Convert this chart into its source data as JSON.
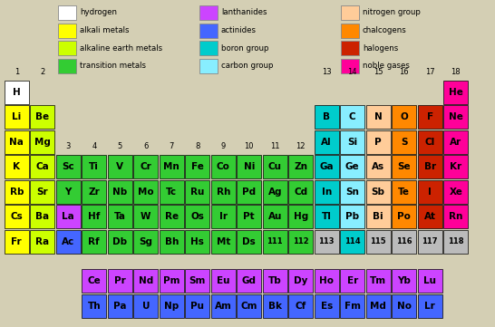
{
  "bg_color": "#d4cfb4",
  "element_colors": {
    "hydrogen": "#ffffff",
    "alkali": "#ffff00",
    "alkaline": "#ccff00",
    "transition": "#33cc33",
    "lanthanides": "#cc44ff",
    "actinides": "#4466ff",
    "boron_group": "#00cccc",
    "carbon_group": "#88eeff",
    "nitrogen_group": "#ffcc99",
    "chalcogens": "#ff8800",
    "halogens": "#cc2200",
    "noble": "#ff0099",
    "unknown": "#bbbbbb"
  },
  "legend_cols": [
    [
      {
        "label": "hydrogen",
        "color": "#ffffff"
      },
      {
        "label": "alkali metals",
        "color": "#ffff00"
      },
      {
        "label": "alkaline earth metals",
        "color": "#ccff00"
      },
      {
        "label": "transition metals",
        "color": "#33cc33"
      }
    ],
    [
      {
        "label": "lanthanides",
        "color": "#cc44ff"
      },
      {
        "label": "actinides",
        "color": "#4466ff"
      },
      {
        "label": "boron group",
        "color": "#00cccc"
      },
      {
        "label": "carbon group",
        "color": "#88eeff"
      }
    ],
    [
      {
        "label": "nitrogen group",
        "color": "#ffcc99"
      },
      {
        "label": "chalcogens",
        "color": "#ff8800"
      },
      {
        "label": "halogens",
        "color": "#cc2200"
      },
      {
        "label": "noble gases",
        "color": "#ff0099"
      }
    ]
  ],
  "elements": [
    {
      "symbol": "H",
      "row": 1,
      "col": 1,
      "type": "hydrogen"
    },
    {
      "symbol": "He",
      "row": 1,
      "col": 18,
      "type": "noble"
    },
    {
      "symbol": "Li",
      "row": 2,
      "col": 1,
      "type": "alkali"
    },
    {
      "symbol": "Be",
      "row": 2,
      "col": 2,
      "type": "alkaline"
    },
    {
      "symbol": "B",
      "row": 2,
      "col": 13,
      "type": "boron_group"
    },
    {
      "symbol": "C",
      "row": 2,
      "col": 14,
      "type": "carbon_group"
    },
    {
      "symbol": "N",
      "row": 2,
      "col": 15,
      "type": "nitrogen_group"
    },
    {
      "symbol": "O",
      "row": 2,
      "col": 16,
      "type": "chalcogens"
    },
    {
      "symbol": "F",
      "row": 2,
      "col": 17,
      "type": "halogens"
    },
    {
      "symbol": "Ne",
      "row": 2,
      "col": 18,
      "type": "noble"
    },
    {
      "symbol": "Na",
      "row": 3,
      "col": 1,
      "type": "alkali"
    },
    {
      "symbol": "Mg",
      "row": 3,
      "col": 2,
      "type": "alkaline"
    },
    {
      "symbol": "Al",
      "row": 3,
      "col": 13,
      "type": "boron_group"
    },
    {
      "symbol": "Si",
      "row": 3,
      "col": 14,
      "type": "carbon_group"
    },
    {
      "symbol": "P",
      "row": 3,
      "col": 15,
      "type": "nitrogen_group"
    },
    {
      "symbol": "S",
      "row": 3,
      "col": 16,
      "type": "chalcogens"
    },
    {
      "symbol": "Cl",
      "row": 3,
      "col": 17,
      "type": "halogens"
    },
    {
      "symbol": "Ar",
      "row": 3,
      "col": 18,
      "type": "noble"
    },
    {
      "symbol": "K",
      "row": 4,
      "col": 1,
      "type": "alkali"
    },
    {
      "symbol": "Ca",
      "row": 4,
      "col": 2,
      "type": "alkaline"
    },
    {
      "symbol": "Sc",
      "row": 4,
      "col": 3,
      "type": "transition"
    },
    {
      "symbol": "Ti",
      "row": 4,
      "col": 4,
      "type": "transition"
    },
    {
      "symbol": "V",
      "row": 4,
      "col": 5,
      "type": "transition"
    },
    {
      "symbol": "Cr",
      "row": 4,
      "col": 6,
      "type": "transition"
    },
    {
      "symbol": "Mn",
      "row": 4,
      "col": 7,
      "type": "transition"
    },
    {
      "symbol": "Fe",
      "row": 4,
      "col": 8,
      "type": "transition"
    },
    {
      "symbol": "Co",
      "row": 4,
      "col": 9,
      "type": "transition"
    },
    {
      "symbol": "Ni",
      "row": 4,
      "col": 10,
      "type": "transition"
    },
    {
      "symbol": "Cu",
      "row": 4,
      "col": 11,
      "type": "transition"
    },
    {
      "symbol": "Zn",
      "row": 4,
      "col": 12,
      "type": "transition"
    },
    {
      "symbol": "Ga",
      "row": 4,
      "col": 13,
      "type": "boron_group"
    },
    {
      "symbol": "Ge",
      "row": 4,
      "col": 14,
      "type": "carbon_group"
    },
    {
      "symbol": "As",
      "row": 4,
      "col": 15,
      "type": "nitrogen_group"
    },
    {
      "symbol": "Se",
      "row": 4,
      "col": 16,
      "type": "chalcogens"
    },
    {
      "symbol": "Br",
      "row": 4,
      "col": 17,
      "type": "halogens"
    },
    {
      "symbol": "Kr",
      "row": 4,
      "col": 18,
      "type": "noble"
    },
    {
      "symbol": "Rb",
      "row": 5,
      "col": 1,
      "type": "alkali"
    },
    {
      "symbol": "Sr",
      "row": 5,
      "col": 2,
      "type": "alkaline"
    },
    {
      "symbol": "Y",
      "row": 5,
      "col": 3,
      "type": "transition"
    },
    {
      "symbol": "Zr",
      "row": 5,
      "col": 4,
      "type": "transition"
    },
    {
      "symbol": "Nb",
      "row": 5,
      "col": 5,
      "type": "transition"
    },
    {
      "symbol": "Mo",
      "row": 5,
      "col": 6,
      "type": "transition"
    },
    {
      "symbol": "Tc",
      "row": 5,
      "col": 7,
      "type": "transition"
    },
    {
      "symbol": "Ru",
      "row": 5,
      "col": 8,
      "type": "transition"
    },
    {
      "symbol": "Rh",
      "row": 5,
      "col": 9,
      "type": "transition"
    },
    {
      "symbol": "Pd",
      "row": 5,
      "col": 10,
      "type": "transition"
    },
    {
      "symbol": "Ag",
      "row": 5,
      "col": 11,
      "type": "transition"
    },
    {
      "symbol": "Cd",
      "row": 5,
      "col": 12,
      "type": "transition"
    },
    {
      "symbol": "In",
      "row": 5,
      "col": 13,
      "type": "boron_group"
    },
    {
      "symbol": "Sn",
      "row": 5,
      "col": 14,
      "type": "carbon_group"
    },
    {
      "symbol": "Sb",
      "row": 5,
      "col": 15,
      "type": "nitrogen_group"
    },
    {
      "symbol": "Te",
      "row": 5,
      "col": 16,
      "type": "chalcogens"
    },
    {
      "symbol": "I",
      "row": 5,
      "col": 17,
      "type": "halogens"
    },
    {
      "symbol": "Xe",
      "row": 5,
      "col": 18,
      "type": "noble"
    },
    {
      "symbol": "Cs",
      "row": 6,
      "col": 1,
      "type": "alkali"
    },
    {
      "symbol": "Ba",
      "row": 6,
      "col": 2,
      "type": "alkaline"
    },
    {
      "symbol": "La",
      "row": 6,
      "col": 3,
      "type": "lanthanides"
    },
    {
      "symbol": "Hf",
      "row": 6,
      "col": 4,
      "type": "transition"
    },
    {
      "symbol": "Ta",
      "row": 6,
      "col": 5,
      "type": "transition"
    },
    {
      "symbol": "W",
      "row": 6,
      "col": 6,
      "type": "transition"
    },
    {
      "symbol": "Re",
      "row": 6,
      "col": 7,
      "type": "transition"
    },
    {
      "symbol": "Os",
      "row": 6,
      "col": 8,
      "type": "transition"
    },
    {
      "symbol": "Ir",
      "row": 6,
      "col": 9,
      "type": "transition"
    },
    {
      "symbol": "Pt",
      "row": 6,
      "col": 10,
      "type": "transition"
    },
    {
      "symbol": "Au",
      "row": 6,
      "col": 11,
      "type": "transition"
    },
    {
      "symbol": "Hg",
      "row": 6,
      "col": 12,
      "type": "transition"
    },
    {
      "symbol": "Tl",
      "row": 6,
      "col": 13,
      "type": "boron_group"
    },
    {
      "symbol": "Pb",
      "row": 6,
      "col": 14,
      "type": "carbon_group"
    },
    {
      "symbol": "Bi",
      "row": 6,
      "col": 15,
      "type": "nitrogen_group"
    },
    {
      "symbol": "Po",
      "row": 6,
      "col": 16,
      "type": "chalcogens"
    },
    {
      "symbol": "At",
      "row": 6,
      "col": 17,
      "type": "halogens"
    },
    {
      "symbol": "Rn",
      "row": 6,
      "col": 18,
      "type": "noble"
    },
    {
      "symbol": "Fr",
      "row": 7,
      "col": 1,
      "type": "alkali"
    },
    {
      "symbol": "Ra",
      "row": 7,
      "col": 2,
      "type": "alkaline"
    },
    {
      "symbol": "Ac",
      "row": 7,
      "col": 3,
      "type": "actinides"
    },
    {
      "symbol": "Rf",
      "row": 7,
      "col": 4,
      "type": "transition"
    },
    {
      "symbol": "Db",
      "row": 7,
      "col": 5,
      "type": "transition"
    },
    {
      "symbol": "Sg",
      "row": 7,
      "col": 6,
      "type": "transition"
    },
    {
      "symbol": "Bh",
      "row": 7,
      "col": 7,
      "type": "transition"
    },
    {
      "symbol": "Hs",
      "row": 7,
      "col": 8,
      "type": "transition"
    },
    {
      "symbol": "Mt",
      "row": 7,
      "col": 9,
      "type": "transition"
    },
    {
      "symbol": "Ds",
      "row": 7,
      "col": 10,
      "type": "transition"
    },
    {
      "symbol": "111",
      "row": 7,
      "col": 11,
      "type": "transition"
    },
    {
      "symbol": "112",
      "row": 7,
      "col": 12,
      "type": "transition"
    },
    {
      "symbol": "113",
      "row": 7,
      "col": 13,
      "type": "unknown"
    },
    {
      "symbol": "114",
      "row": 7,
      "col": 14,
      "type": "boron_group"
    },
    {
      "symbol": "115",
      "row": 7,
      "col": 15,
      "type": "unknown"
    },
    {
      "symbol": "116",
      "row": 7,
      "col": 16,
      "type": "unknown"
    },
    {
      "symbol": "117",
      "row": 7,
      "col": 17,
      "type": "unknown"
    },
    {
      "symbol": "118",
      "row": 7,
      "col": 18,
      "type": "unknown"
    },
    {
      "symbol": "Ce",
      "row": 9,
      "col": 4,
      "type": "lanthanides"
    },
    {
      "symbol": "Pr",
      "row": 9,
      "col": 5,
      "type": "lanthanides"
    },
    {
      "symbol": "Nd",
      "row": 9,
      "col": 6,
      "type": "lanthanides"
    },
    {
      "symbol": "Pm",
      "row": 9,
      "col": 7,
      "type": "lanthanides"
    },
    {
      "symbol": "Sm",
      "row": 9,
      "col": 8,
      "type": "lanthanides"
    },
    {
      "symbol": "Eu",
      "row": 9,
      "col": 9,
      "type": "lanthanides"
    },
    {
      "symbol": "Gd",
      "row": 9,
      "col": 10,
      "type": "lanthanides"
    },
    {
      "symbol": "Tb",
      "row": 9,
      "col": 11,
      "type": "lanthanides"
    },
    {
      "symbol": "Dy",
      "row": 9,
      "col": 12,
      "type": "lanthanides"
    },
    {
      "symbol": "Ho",
      "row": 9,
      "col": 13,
      "type": "lanthanides"
    },
    {
      "symbol": "Er",
      "row": 9,
      "col": 14,
      "type": "lanthanides"
    },
    {
      "symbol": "Tm",
      "row": 9,
      "col": 15,
      "type": "lanthanides"
    },
    {
      "symbol": "Yb",
      "row": 9,
      "col": 16,
      "type": "lanthanides"
    },
    {
      "symbol": "Lu",
      "row": 9,
      "col": 17,
      "type": "lanthanides"
    },
    {
      "symbol": "Th",
      "row": 10,
      "col": 4,
      "type": "actinides"
    },
    {
      "symbol": "Pa",
      "row": 10,
      "col": 5,
      "type": "actinides"
    },
    {
      "symbol": "U",
      "row": 10,
      "col": 6,
      "type": "actinides"
    },
    {
      "symbol": "Np",
      "row": 10,
      "col": 7,
      "type": "actinides"
    },
    {
      "symbol": "Pu",
      "row": 10,
      "col": 8,
      "type": "actinides"
    },
    {
      "symbol": "Am",
      "row": 10,
      "col": 9,
      "type": "actinides"
    },
    {
      "symbol": "Cm",
      "row": 10,
      "col": 10,
      "type": "actinides"
    },
    {
      "symbol": "Bk",
      "row": 10,
      "col": 11,
      "type": "actinides"
    },
    {
      "symbol": "Cf",
      "row": 10,
      "col": 12,
      "type": "actinides"
    },
    {
      "symbol": "Es",
      "row": 10,
      "col": 13,
      "type": "actinides"
    },
    {
      "symbol": "Fm",
      "row": 10,
      "col": 14,
      "type": "actinides"
    },
    {
      "symbol": "Md",
      "row": 10,
      "col": 15,
      "type": "actinides"
    },
    {
      "symbol": "No",
      "row": 10,
      "col": 16,
      "type": "actinides"
    },
    {
      "symbol": "Lr",
      "row": 10,
      "col": 17,
      "type": "actinides"
    }
  ]
}
